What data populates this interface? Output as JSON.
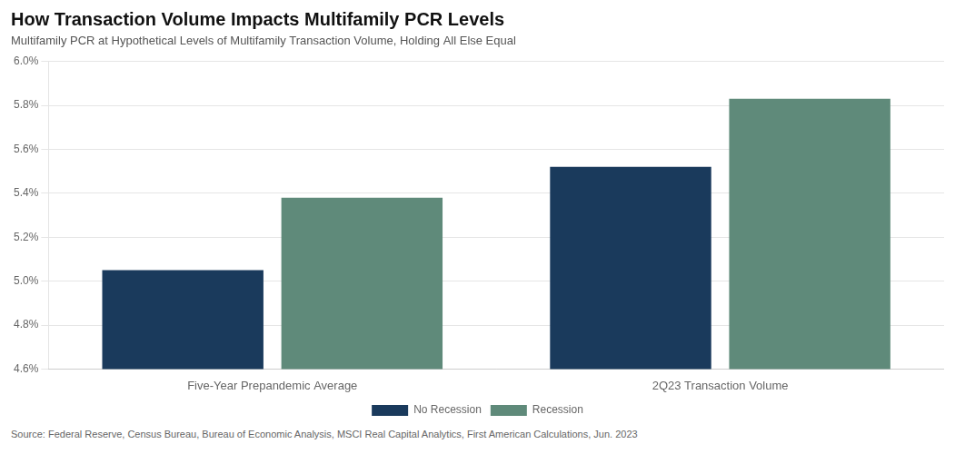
{
  "chart_data": {
    "type": "bar",
    "title": "How Transaction Volume Impacts Multifamily PCR Levels",
    "subtitle": "Multifamily PCR at Hypothetical Levels of Multifamily Transaction Volume, Holding All Else Equal",
    "annotations": [
      "Source: Federal Reserve, Census Bureau, Bureau of Economic Analysis, MSCI Real Capital Analytics, First American Calculations, Jun. 2023"
    ],
    "categories": [
      "Five-Year Prepandemic Average",
      "2Q23 Transaction Volume"
    ],
    "series": [
      {
        "name": "No Recession",
        "color": "#1a3a5c",
        "values": [
          5.05,
          5.52
        ]
      },
      {
        "name": "Recession",
        "color": "#5f8a7a",
        "values": [
          5.38,
          5.83
        ]
      }
    ],
    "ylim": [
      4.6,
      6.0
    ],
    "yticks": [
      {
        "value": 4.6,
        "label": "4.6%"
      },
      {
        "value": 4.8,
        "label": "4.8%"
      },
      {
        "value": 5.0,
        "label": "5.0%"
      },
      {
        "value": 5.2,
        "label": "5.2%"
      },
      {
        "value": 5.4,
        "label": "5.4%"
      },
      {
        "value": 5.6,
        "label": "5.6%"
      },
      {
        "value": 5.8,
        "label": "5.8%"
      },
      {
        "value": 6.0,
        "label": "6.0%"
      }
    ],
    "grid": true,
    "legend": "bottom"
  }
}
